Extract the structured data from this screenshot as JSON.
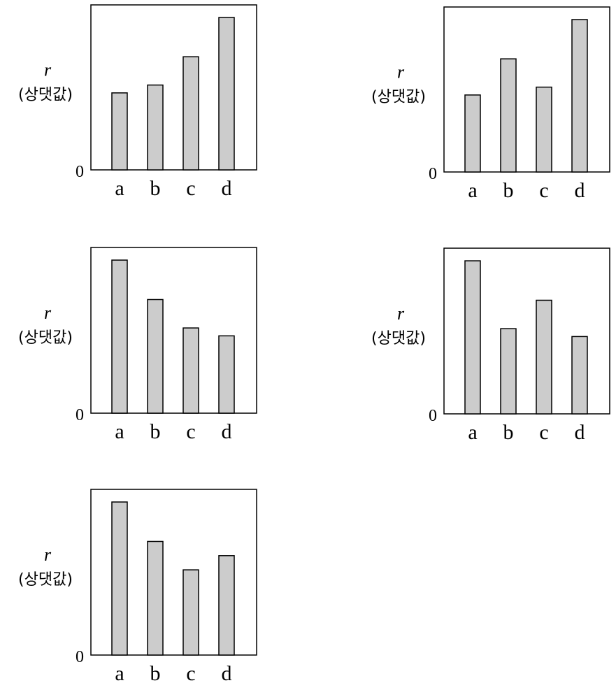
{
  "chart_data": [
    {
      "type": "bar",
      "categories": [
        "a",
        "b",
        "c",
        "d"
      ],
      "values": [
        49,
        54,
        72,
        97
      ],
      "ylabel": "r",
      "ylabel_unit": "(상댓값)",
      "yaxis_zero_label": "0",
      "ylim": [
        0,
        105
      ],
      "grid": false
    },
    {
      "type": "bar",
      "categories": [
        "a",
        "b",
        "c",
        "d"
      ],
      "values": [
        49,
        72,
        54,
        97
      ],
      "ylabel": "r",
      "ylabel_unit": "(상댓값)",
      "yaxis_zero_label": "0",
      "ylim": [
        0,
        105
      ],
      "grid": false
    },
    {
      "type": "bar",
      "categories": [
        "a",
        "b",
        "c",
        "d"
      ],
      "values": [
        97,
        72,
        54,
        49
      ],
      "ylabel": "r",
      "ylabel_unit": "(상댓값)",
      "yaxis_zero_label": "0",
      "ylim": [
        0,
        105
      ],
      "grid": false
    },
    {
      "type": "bar",
      "categories": [
        "a",
        "b",
        "c",
        "d"
      ],
      "values": [
        97,
        54,
        72,
        49
      ],
      "ylabel": "r",
      "ylabel_unit": "(상댓값)",
      "yaxis_zero_label": "0",
      "ylim": [
        0,
        105
      ],
      "grid": false
    },
    {
      "type": "bar",
      "categories": [
        "a",
        "b",
        "c",
        "d"
      ],
      "values": [
        97,
        72,
        54,
        63
      ],
      "ylabel": "r",
      "ylabel_unit": "(상댓값)",
      "yaxis_zero_label": "0",
      "ylim": [
        0,
        105
      ],
      "grid": false
    }
  ]
}
